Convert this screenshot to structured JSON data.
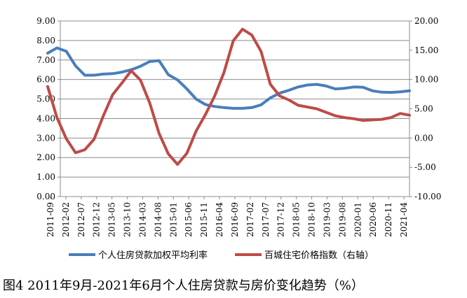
{
  "chart_data": {
    "type": "line",
    "title": "",
    "caption": "图4 2011年9月-2021年6月个人住房贷款与房价变化趋势（%）",
    "y_left": {
      "min": 0,
      "max": 9,
      "ticks": [
        "0.00",
        "1.00",
        "2.00",
        "3.00",
        "4.00",
        "5.00",
        "6.00",
        "7.00",
        "8.00",
        "9.00"
      ]
    },
    "y_right": {
      "min": -10,
      "max": 20,
      "ticks": [
        "-10.00",
        "-5.00",
        "0.00",
        "5.00",
        "10.00",
        "15.00",
        "20.00"
      ]
    },
    "x_tick_labels": [
      "2011-09",
      "2012-02",
      "2012-07",
      "2012-12",
      "2013-05",
      "2013-10",
      "2014-03",
      "2014-08",
      "2015-01",
      "2015-06",
      "2015-11",
      "2016-04",
      "2016-09",
      "2017-02",
      "2017-07",
      "2017-12",
      "2018-05",
      "2018-10",
      "2019-03",
      "2019-08",
      "2020-01",
      "2020-06",
      "2020-11",
      "2021-04"
    ],
    "x_start": "2011-09",
    "x_end": "2021-06",
    "grid": "horizontal",
    "legend_position": "bottom",
    "series": [
      {
        "name": "个人住房贷款加权平均利率",
        "axis": "left",
        "color": "#4a7ebb",
        "points": [
          [
            "2011-09",
            7.35
          ],
          [
            "2011-12",
            7.62
          ],
          [
            "2012-03",
            7.45
          ],
          [
            "2012-06",
            6.7
          ],
          [
            "2012-09",
            6.22
          ],
          [
            "2012-12",
            6.22
          ],
          [
            "2013-03",
            6.28
          ],
          [
            "2013-06",
            6.3
          ],
          [
            "2013-09",
            6.38
          ],
          [
            "2013-12",
            6.5
          ],
          [
            "2014-03",
            6.68
          ],
          [
            "2014-06",
            6.92
          ],
          [
            "2014-09",
            6.97
          ],
          [
            "2014-12",
            6.25
          ],
          [
            "2015-03",
            5.98
          ],
          [
            "2015-06",
            5.52
          ],
          [
            "2015-09",
            5.0
          ],
          [
            "2015-12",
            4.72
          ],
          [
            "2016-03",
            4.62
          ],
          [
            "2016-06",
            4.56
          ],
          [
            "2016-09",
            4.52
          ],
          [
            "2016-12",
            4.52
          ],
          [
            "2017-03",
            4.56
          ],
          [
            "2017-06",
            4.7
          ],
          [
            "2017-09",
            5.06
          ],
          [
            "2017-12",
            5.3
          ],
          [
            "2018-03",
            5.45
          ],
          [
            "2018-06",
            5.62
          ],
          [
            "2018-09",
            5.72
          ],
          [
            "2018-12",
            5.75
          ],
          [
            "2019-03",
            5.67
          ],
          [
            "2019-06",
            5.52
          ],
          [
            "2019-09",
            5.55
          ],
          [
            "2019-12",
            5.62
          ],
          [
            "2020-03",
            5.6
          ],
          [
            "2020-06",
            5.42
          ],
          [
            "2020-09",
            5.35
          ],
          [
            "2020-12",
            5.34
          ],
          [
            "2021-03",
            5.37
          ],
          [
            "2021-06",
            5.42
          ]
        ]
      },
      {
        "name": "百城住宅价格指数（右轴）",
        "axis": "right",
        "color": "#be4b48",
        "points": [
          [
            "2011-09",
            8.8
          ],
          [
            "2011-12",
            3.5
          ],
          [
            "2012-03",
            -0.1
          ],
          [
            "2012-06",
            -2.5
          ],
          [
            "2012-09",
            -2.0
          ],
          [
            "2012-12",
            -0.2
          ],
          [
            "2013-03",
            3.8
          ],
          [
            "2013-06",
            7.4
          ],
          [
            "2013-09",
            9.4
          ],
          [
            "2013-12",
            11.5
          ],
          [
            "2014-03",
            9.9
          ],
          [
            "2014-06",
            6.0
          ],
          [
            "2014-09",
            0.8
          ],
          [
            "2014-12",
            -2.7
          ],
          [
            "2015-03",
            -4.5
          ],
          [
            "2015-06",
            -2.6
          ],
          [
            "2015-09",
            1.2
          ],
          [
            "2015-12",
            4.0
          ],
          [
            "2016-03",
            7.2
          ],
          [
            "2016-06",
            11.2
          ],
          [
            "2016-09",
            16.6
          ],
          [
            "2016-12",
            18.6
          ],
          [
            "2017-03",
            17.6
          ],
          [
            "2017-06",
            14.8
          ],
          [
            "2017-09",
            9.2
          ],
          [
            "2017-12",
            7.2
          ],
          [
            "2018-03",
            6.5
          ],
          [
            "2018-06",
            5.6
          ],
          [
            "2018-09",
            5.3
          ],
          [
            "2018-12",
            5.0
          ],
          [
            "2019-03",
            4.4
          ],
          [
            "2019-06",
            3.8
          ],
          [
            "2019-09",
            3.5
          ],
          [
            "2019-12",
            3.3
          ],
          [
            "2020-03",
            3.0
          ],
          [
            "2020-06",
            3.1
          ],
          [
            "2020-09",
            3.2
          ],
          [
            "2020-12",
            3.5
          ],
          [
            "2021-03",
            4.2
          ],
          [
            "2021-06",
            3.9
          ]
        ]
      }
    ]
  }
}
